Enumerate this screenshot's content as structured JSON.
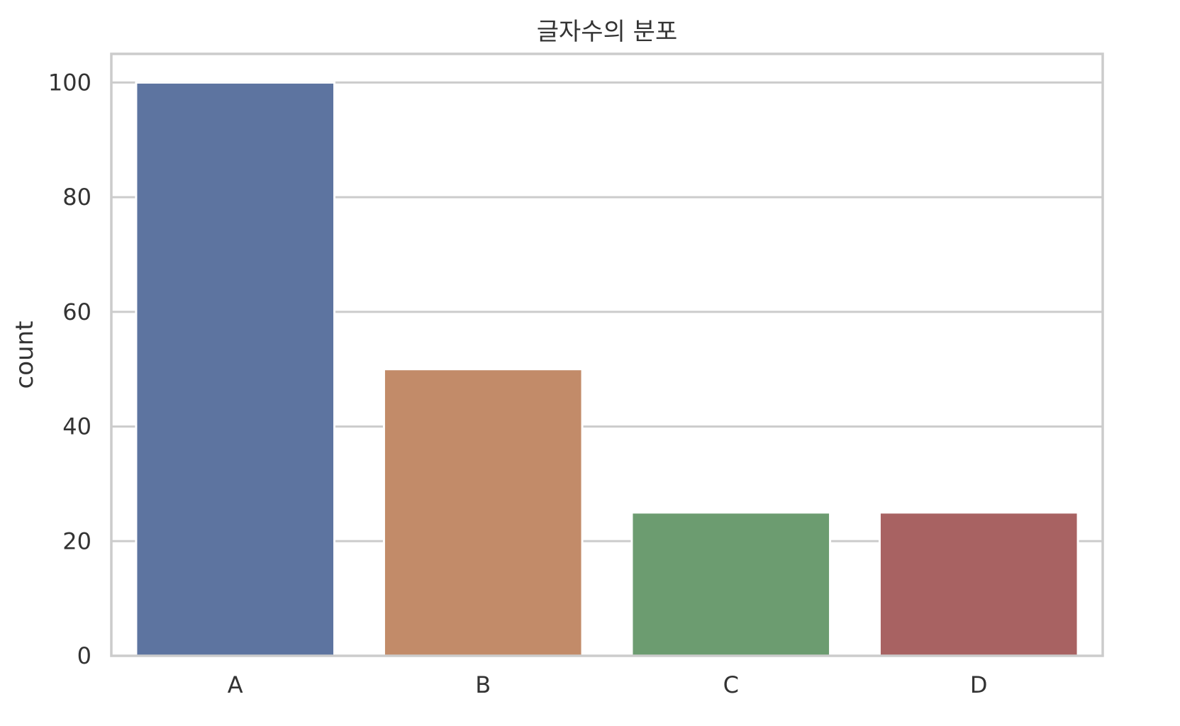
{
  "chart_data": {
    "type": "bar",
    "title": "글자수의 분포",
    "xlabel": "",
    "ylabel": "count",
    "categories": [
      "A",
      "B",
      "C",
      "D"
    ],
    "values": [
      100,
      50,
      25,
      25
    ],
    "colors": [
      "#5d74a0",
      "#c28b69",
      "#6c9c70",
      "#a86262"
    ],
    "ylim": [
      0,
      105
    ],
    "yticks": [
      0,
      20,
      40,
      60,
      80,
      100
    ],
    "grid": true,
    "grid_color": "#cccccc",
    "frame_color": "#cccccc"
  }
}
